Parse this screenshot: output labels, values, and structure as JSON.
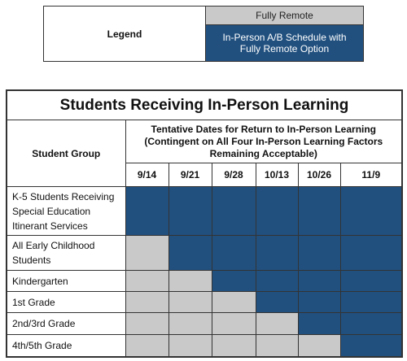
{
  "legend": {
    "title": "Legend",
    "items": [
      {
        "label": "Fully Remote",
        "color": "#c9c9c9",
        "text_color": "#222222"
      },
      {
        "label": "In-Person A/B Schedule with Fully Remote Option",
        "color": "#21507f",
        "text_color": "#ffffff"
      }
    ]
  },
  "table": {
    "title": "Students Receiving In-Person Learning",
    "group_header": "Student Group",
    "dates_header": "Tentative Dates for Return to In-Person Learning (Contingent on All Four In-Person Learning Factors Remaining Acceptable)",
    "dates": [
      "9/14",
      "9/21",
      "9/28",
      "10/13",
      "10/26",
      "11/9"
    ],
    "rows": [
      {
        "group": "K-5 Students Receiving Special Education Itinerant Services",
        "colors": [
          "#21507f",
          "#21507f",
          "#21507f",
          "#21507f",
          "#21507f",
          "#21507f"
        ]
      },
      {
        "group": "All Early Childhood Students",
        "colors": [
          "#c9c9c9",
          "#21507f",
          "#21507f",
          "#21507f",
          "#21507f",
          "#21507f"
        ]
      },
      {
        "group": "Kindergarten",
        "colors": [
          "#c9c9c9",
          "#c9c9c9",
          "#21507f",
          "#21507f",
          "#21507f",
          "#21507f"
        ]
      },
      {
        "group": "1st Grade",
        "colors": [
          "#c9c9c9",
          "#c9c9c9",
          "#c9c9c9",
          "#21507f",
          "#21507f",
          "#21507f"
        ]
      },
      {
        "group": "2nd/3rd Grade",
        "colors": [
          "#c9c9c9",
          "#c9c9c9",
          "#c9c9c9",
          "#c9c9c9",
          "#21507f",
          "#21507f"
        ]
      },
      {
        "group": "4th/5th Grade",
        "colors": [
          "#c9c9c9",
          "#c9c9c9",
          "#c9c9c9",
          "#c9c9c9",
          "#c9c9c9",
          "#21507f"
        ]
      }
    ]
  }
}
